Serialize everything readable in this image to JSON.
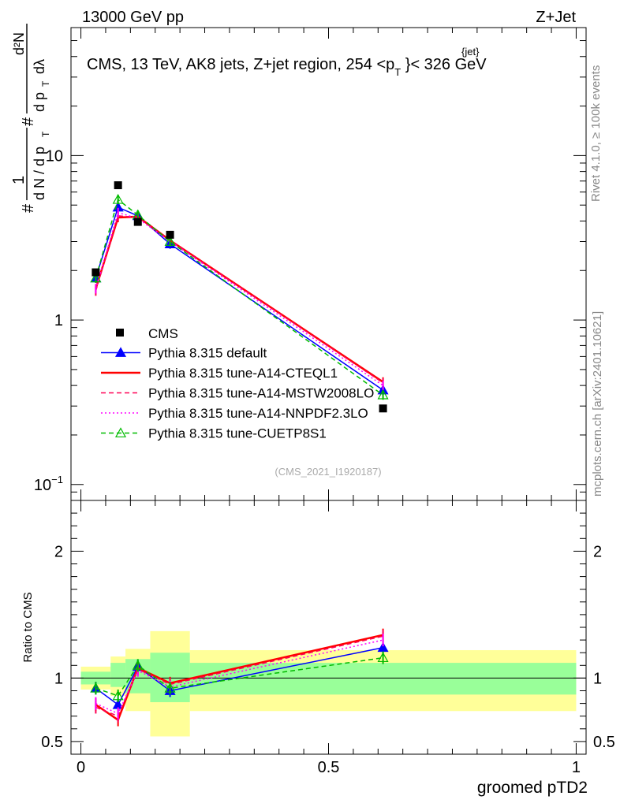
{
  "header": {
    "left": "13000 GeV pp",
    "right": "Z+Jet"
  },
  "side": {
    "rivet": "Rivet 4.1.0, ≥ 100k events",
    "mcplots": "mcplots.cern.ch [arXiv:2401.10621]"
  },
  "title": {
    "main": "CMS, 13 TeV, AK8 jets, Z+jet region, 254 <p",
    "sub": "T",
    "sup": "{jet}",
    "tail": "}< 326 GeV"
  },
  "ylabel": {
    "hash1": "#",
    "one": "1",
    "dn": "d N / d p",
    "t1": "T",
    "hash2": "#",
    "d2n": "d²N",
    "dpt": "d p",
    "t2": "T",
    "dlambda": "dλ"
  },
  "xlabel": "groomed pTD2",
  "ratio_ylabel": "Ratio to CMS",
  "analysis_tag": "(CMS_2021_I1920187)",
  "main_yticks": [
    {
      "value": 0.1,
      "base": "10",
      "exp": "−1"
    },
    {
      "value": 1,
      "label": "1"
    },
    {
      "value": 10,
      "label": "10"
    }
  ],
  "ratio_yticks": [
    {
      "value": 0.5,
      "label": "0.5"
    },
    {
      "value": 1,
      "label": "1"
    },
    {
      "value": 2,
      "label": "2"
    }
  ],
  "xticks": [
    {
      "value": 0,
      "label": "0"
    },
    {
      "value": 0.5,
      "label": "0.5"
    },
    {
      "value": 1,
      "label": "1"
    }
  ],
  "chart_data": {
    "type": "line",
    "xlim": [
      -0.02,
      1.02
    ],
    "ylim_main": [
      0.08,
      60
    ],
    "ylim_ratio": [
      0.4,
      2.4
    ],
    "x": [
      0.03,
      0.075,
      0.115,
      0.18,
      0.61
    ],
    "data": {
      "name": "CMS",
      "values": [
        1.95,
        6.6,
        3.95,
        3.3,
        0.29
      ]
    },
    "bins": [
      {
        "x0": 0.0,
        "x1": 0.06,
        "band_inner": [
          0.95,
          1.05
        ],
        "band_outer": [
          0.91,
          1.09
        ]
      },
      {
        "x0": 0.06,
        "x1": 0.09,
        "band_inner": [
          0.93,
          1.12
        ],
        "band_outer": [
          0.86,
          1.17
        ]
      },
      {
        "x0": 0.09,
        "x1": 0.14,
        "band_inner": [
          0.88,
          1.15
        ],
        "band_outer": [
          0.74,
          1.23
        ]
      },
      {
        "x0": 0.14,
        "x1": 0.22,
        "band_inner": [
          0.81,
          1.2
        ],
        "band_outer": [
          0.54,
          1.37
        ]
      },
      {
        "x0": 0.22,
        "x1": 1.0,
        "band_inner": [
          0.87,
          1.12
        ],
        "band_outer": [
          0.74,
          1.22
        ]
      }
    ],
    "series": [
      {
        "name": "Pythia 8.315 default",
        "color": "#0000ff",
        "style": "solid",
        "marker": "triangle",
        "values": [
          1.8,
          4.85,
          4.3,
          2.9,
          0.375
        ],
        "ratio": [
          0.92,
          0.79,
          1.09,
          0.9,
          1.24
        ]
      },
      {
        "name": "Pythia 8.315 tune-A14-CTEQL1",
        "color": "#ff0000",
        "style": "solid",
        "marker": "none",
        "values": [
          1.55,
          4.2,
          4.25,
          3.05,
          0.42
        ],
        "ratio": [
          0.79,
          0.67,
          1.08,
          0.96,
          1.34
        ]
      },
      {
        "name": "Pythia 8.315 tune-A14-MSTW2008LO",
        "color": "#ff0055",
        "style": "dashed",
        "marker": "none",
        "values": [
          1.5,
          4.3,
          4.2,
          3.05,
          0.415
        ],
        "ratio": [
          0.77,
          0.7,
          1.07,
          0.95,
          1.33
        ]
      },
      {
        "name": "Pythia 8.315 tune-A14-NNPDF2.3LO",
        "color": "#ff00ff",
        "style": "dotted",
        "marker": "none",
        "values": [
          1.55,
          4.5,
          4.15,
          3.0,
          0.4
        ],
        "ratio": [
          0.8,
          0.72,
          1.06,
          0.93,
          1.3
        ]
      },
      {
        "name": "Pythia 8.315 tune-CUETP8S1",
        "color": "#00bb00",
        "style": "dashed",
        "marker": "open-triangle",
        "values": [
          1.8,
          5.4,
          4.35,
          3.0,
          0.35
        ],
        "ratio": [
          0.92,
          0.86,
          1.1,
          0.92,
          1.16
        ]
      }
    ]
  }
}
